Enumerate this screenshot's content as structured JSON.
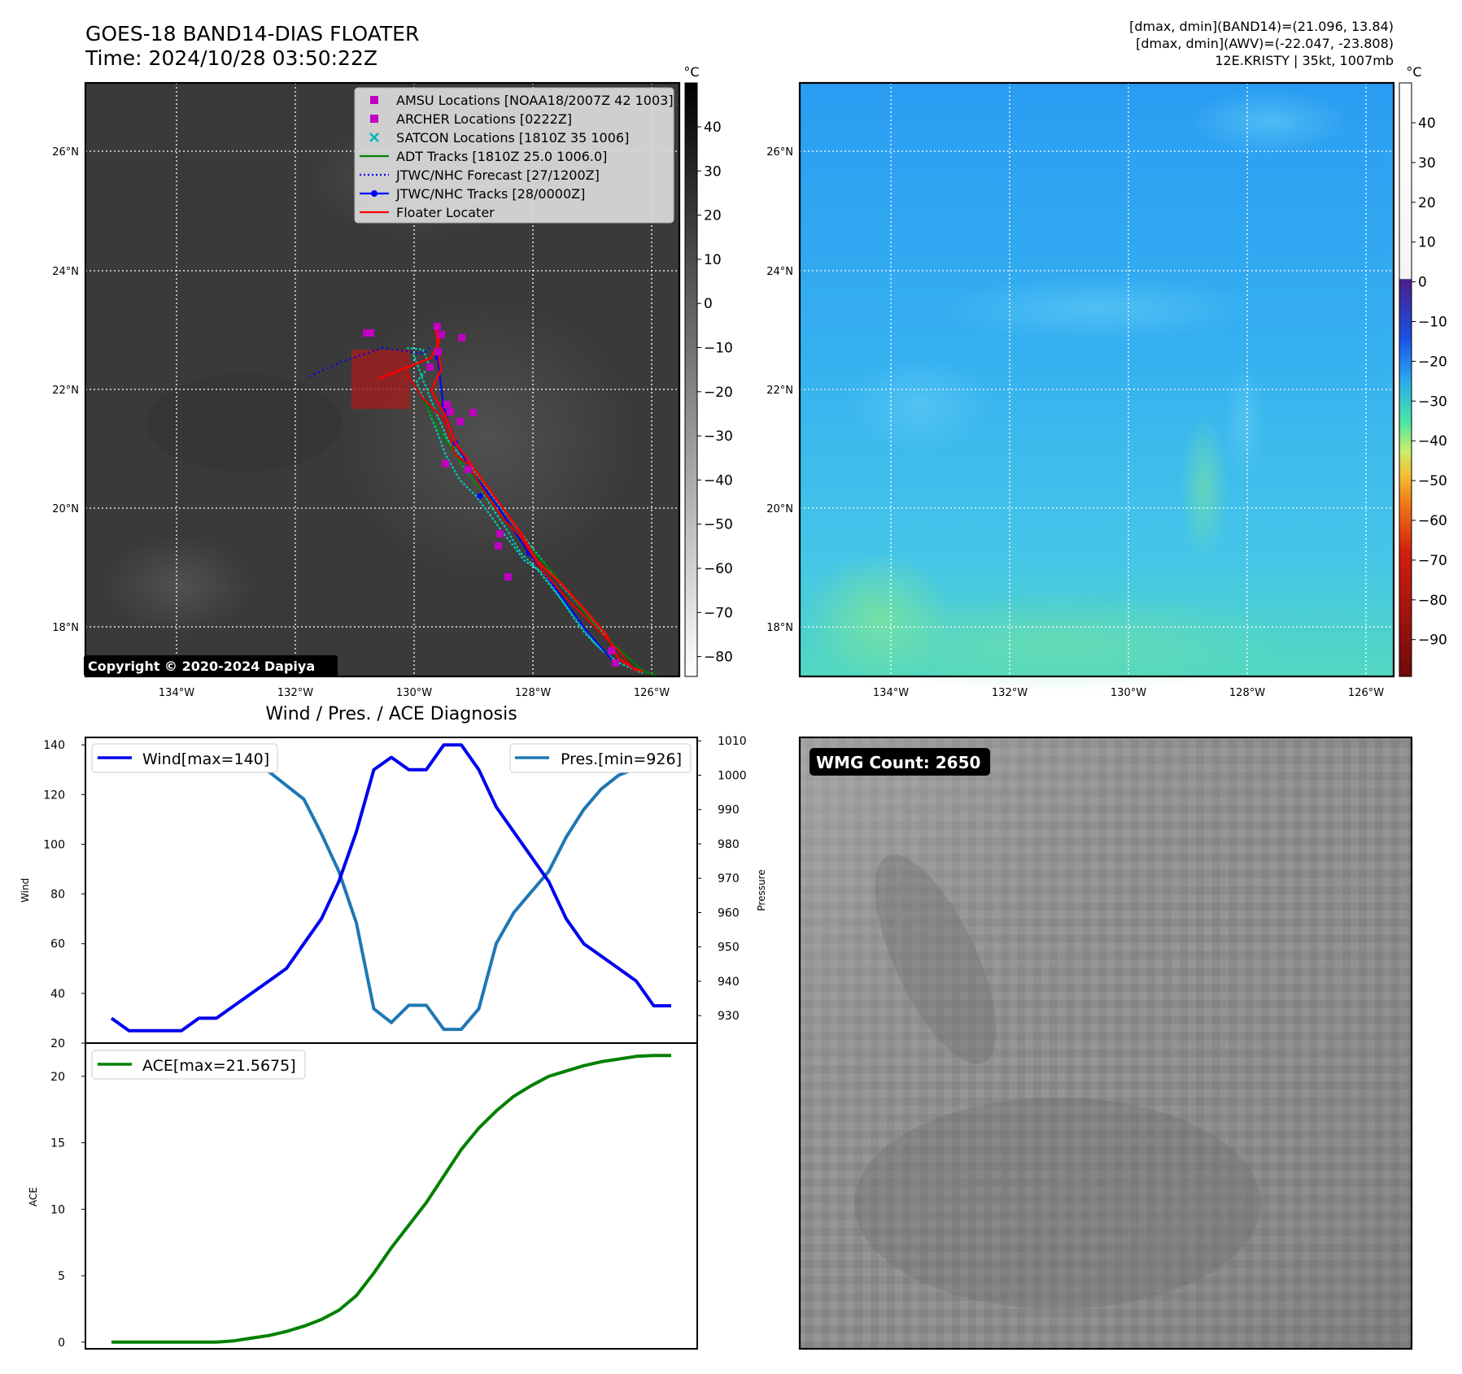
{
  "header": {
    "title_line1": "GOES-18 BAND14-DIAS FLOATER",
    "title_line2": "Time: 2024/10/28 03:50:22Z",
    "info_line1": "[dmax, dmin](BAND14)=(21.096, 13.84)",
    "info_line2": "[dmax, dmin](AWV)=(-22.047, -23.808)",
    "info_line3": "12E.KRISTY | 35kt, 1007mb"
  },
  "map": {
    "lat_labels": [
      "26°N",
      "24°N",
      "22°N",
      "20°N",
      "18°N"
    ],
    "lon_labels": [
      "134°W",
      "132°W",
      "130°W",
      "128°W",
      "126°W"
    ],
    "copyright": "Copyright © 2020-2024 Dapiya",
    "legend": [
      {
        "label": "AMSU Locations [NOAA18/2007Z 42 1003]",
        "marker": "square",
        "color": "#c000c0"
      },
      {
        "label": "ARCHER Locations [0222Z]",
        "marker": "square",
        "color": "#c000c0"
      },
      {
        "label": "SATCON Locations [1810Z 35 1006]",
        "marker": "x",
        "color": "#00b4b4"
      },
      {
        "label": "ADT Tracks [1810Z 25.0 1006.0]",
        "marker": "line",
        "color": "#008000"
      },
      {
        "label": "JTWC/NHC Forecast [27/1200Z]",
        "marker": "dotted",
        "color": "#0000ff"
      },
      {
        "label": "JTWC/NHC Tracks [28/0000Z]",
        "marker": "line-dot",
        "color": "#0000ff"
      },
      {
        "label": "Floater Locater",
        "marker": "line",
        "color": "#ff0000"
      }
    ]
  },
  "colorbars": {
    "unit": "°C",
    "left_ticks": [
      "40",
      "30",
      "20",
      "10",
      "0",
      "−10",
      "−20",
      "−30",
      "−40",
      "−50",
      "−60",
      "−70",
      "−80"
    ],
    "right_ticks": [
      "40",
      "30",
      "20",
      "10",
      "0",
      "−10",
      "−20",
      "−30",
      "−40",
      "−50",
      "−60",
      "−70",
      "−80",
      "−90"
    ]
  },
  "diagnosis": {
    "title": "Wind / Pres. / ACE Diagnosis",
    "wind_legend": "Wind[max=140]",
    "pres_legend": "Pres.[min=926]",
    "ace_legend": "ACE[max=21.5675]",
    "wind_ylabel": "Wind",
    "pres_ylabel": "Pressure",
    "ace_ylabel": "ACE"
  },
  "wmg": {
    "label": "WMG Count: 2650"
  },
  "chart_data": [
    {
      "type": "line",
      "title": "Wind / Pres. / ACE Diagnosis",
      "ylabel": "Wind",
      "ylim": [
        20,
        143
      ],
      "yticks": [
        20,
        40,
        60,
        80,
        100,
        120,
        140
      ],
      "series": [
        {
          "name": "Wind[max=140]",
          "color": "#0000ee",
          "values": [
            30,
            25,
            25,
            25,
            25,
            30,
            30,
            35,
            40,
            45,
            50,
            60,
            70,
            85,
            105,
            130,
            135,
            130,
            130,
            140,
            140,
            130,
            115,
            105,
            95,
            85,
            70,
            60,
            55,
            50,
            45,
            35,
            35
          ]
        }
      ]
    },
    {
      "type": "line",
      "ylabel": "Pressure",
      "ylim": [
        922,
        1011
      ],
      "yticks": [
        930,
        940,
        950,
        960,
        970,
        980,
        990,
        1000,
        1010
      ],
      "series": [
        {
          "name": "Pres.[min=926]",
          "color": "#1f77b4",
          "values": [
            1006,
            1006,
            1006,
            1007,
            1007,
            1007,
            1005,
            1005,
            1003,
            1001,
            997,
            993,
            983,
            972,
            957,
            932,
            928,
            933,
            933,
            926,
            926,
            932,
            951,
            960,
            966,
            972,
            982,
            990,
            996,
            1000,
            1002,
            1004,
            1004
          ]
        }
      ]
    },
    {
      "type": "line",
      "ylabel": "ACE",
      "ylim": [
        -0.5,
        22.5
      ],
      "yticks": [
        0,
        5,
        10,
        15,
        20
      ],
      "series": [
        {
          "name": "ACE[max=21.5675]",
          "color": "#008000",
          "values": [
            0,
            0,
            0,
            0,
            0,
            0,
            0,
            0.1,
            0.3,
            0.5,
            0.8,
            1.2,
            1.7,
            2.4,
            3.5,
            5.2,
            7.1,
            8.8,
            10.5,
            12.5,
            14.5,
            16.1,
            17.4,
            18.5,
            19.3,
            20.0,
            20.4,
            20.8,
            21.1,
            21.3,
            21.5,
            21.5675,
            21.5675
          ]
        }
      ]
    }
  ]
}
